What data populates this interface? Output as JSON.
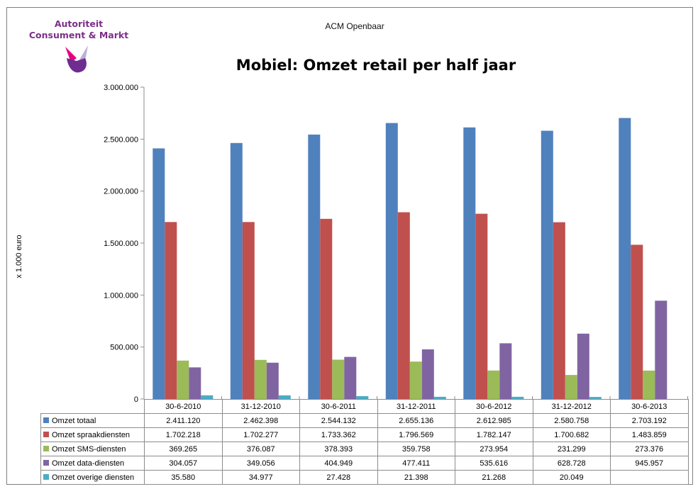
{
  "header": {
    "logo_line1": "Autoriteit",
    "logo_line2": "Consument & Markt",
    "classification": "ACM Openbaar"
  },
  "chart_data": {
    "type": "bar",
    "title": "Mobiel: Omzet retail per half jaar",
    "xlabel": "",
    "ylabel": "x 1.000 euro",
    "ylim": [
      0,
      3000000
    ],
    "yticks": [
      0,
      500000,
      1000000,
      1500000,
      2000000,
      2500000,
      3000000
    ],
    "ytick_labels": [
      "0",
      "500.000",
      "1.000.000",
      "1.500.000",
      "2.000.000",
      "2.500.000",
      "3.000.000"
    ],
    "categories": [
      "30-6-2010",
      "31-12-2010",
      "30-6-2011",
      "31-12-2011",
      "30-6-2012",
      "31-12-2012",
      "30-6-2013"
    ],
    "legend_placement": "data-table",
    "grid": false,
    "series": [
      {
        "name": "Omzet totaal",
        "color": "#4f81bd",
        "values": [
          2411120,
          2462398,
          2544132,
          2655136,
          2612985,
          2580758,
          2703192
        ],
        "labels": [
          "2.411.120",
          "2.462.398",
          "2.544.132",
          "2.655.136",
          "2.612.985",
          "2.580.758",
          "2.703.192"
        ]
      },
      {
        "name": "Omzet spraakdiensten",
        "color": "#c0504d",
        "values": [
          1702218,
          1702277,
          1733362,
          1796569,
          1782147,
          1700682,
          1483859
        ],
        "labels": [
          "1.702.218",
          "1.702.277",
          "1.733.362",
          "1.796.569",
          "1.782.147",
          "1.700.682",
          "1.483.859"
        ]
      },
      {
        "name": "Omzet SMS-diensten",
        "color": "#9bbb59",
        "values": [
          369265,
          376087,
          378393,
          359758,
          273954,
          231299,
          273376
        ],
        "labels": [
          "369.265",
          "376.087",
          "378.393",
          "359.758",
          "273.954",
          "231.299",
          "273.376"
        ]
      },
      {
        "name": "Omzet data-diensten",
        "color": "#8064a2",
        "values": [
          304057,
          349056,
          404949,
          477411,
          535616,
          628728,
          945957
        ],
        "labels": [
          "304.057",
          "349.056",
          "404.949",
          "477.411",
          "535.616",
          "628.728",
          "945.957"
        ]
      },
      {
        "name": "Omzet overige diensten",
        "color": "#4bacc6",
        "values": [
          35580,
          34977,
          27428,
          21398,
          21268,
          20049,
          null
        ],
        "labels": [
          "35.580",
          "34.977",
          "27.428",
          "21.398",
          "21.268",
          "20.049",
          ""
        ]
      }
    ]
  }
}
